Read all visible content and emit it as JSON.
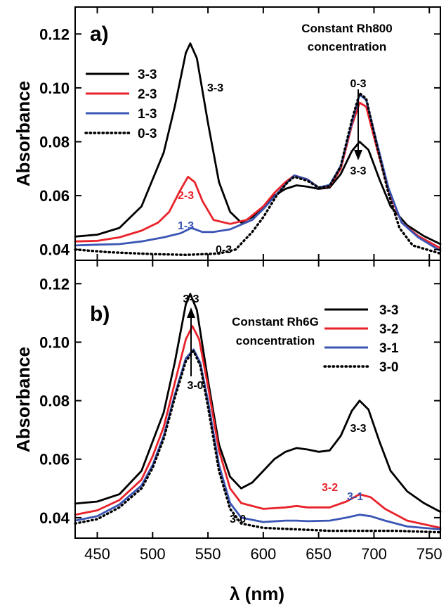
{
  "chart_data": [
    {
      "type": "line",
      "panel_label": "a)",
      "annotation": [
        "Constant Rh800",
        "concentration"
      ],
      "xlabel": "",
      "ylabel": "Absorbance",
      "xlim": [
        430,
        760
      ],
      "ylim": [
        0.036,
        0.13
      ],
      "xticks": [
        450,
        500,
        550,
        600,
        650,
        700,
        750
      ],
      "yticks": [
        0.04,
        0.06,
        0.08,
        0.1,
        0.12
      ],
      "ytick_labels": [
        "0.04",
        "0.06",
        "0.08",
        "0.10",
        "0.12"
      ],
      "grid": false,
      "legend_position": "top-left",
      "series": [
        {
          "name": "3-3",
          "color": "#000000",
          "style": "solid",
          "points": [
            [
              430,
              0.0448
            ],
            [
              450,
              0.0455
            ],
            [
              470,
              0.048
            ],
            [
              490,
              0.056
            ],
            [
              500,
              0.066
            ],
            [
              510,
              0.076
            ],
            [
              520,
              0.093
            ],
            [
              530,
              0.113
            ],
            [
              534,
              0.1165
            ],
            [
              540,
              0.111
            ],
            [
              550,
              0.087
            ],
            [
              560,
              0.065
            ],
            [
              570,
              0.054
            ],
            [
              580,
              0.05
            ],
            [
              590,
              0.052
            ],
            [
              600,
              0.056
            ],
            [
              610,
              0.06
            ],
            [
              620,
              0.0625
            ],
            [
              630,
              0.0638
            ],
            [
              640,
              0.0633
            ],
            [
              650,
              0.0625
            ],
            [
              660,
              0.063
            ],
            [
              670,
              0.068
            ],
            [
              680,
              0.0765
            ],
            [
              687,
              0.08
            ],
            [
              695,
              0.077
            ],
            [
              705,
              0.066
            ],
            [
              715,
              0.056
            ],
            [
              730,
              0.049
            ],
            [
              745,
              0.045
            ],
            [
              760,
              0.042
            ]
          ]
        },
        {
          "name": "2-3",
          "color": "#e8222a",
          "style": "solid",
          "points": [
            [
              430,
              0.043
            ],
            [
              450,
              0.0432
            ],
            [
              470,
              0.0445
            ],
            [
              490,
              0.047
            ],
            [
              505,
              0.05
            ],
            [
              515,
              0.054
            ],
            [
              525,
              0.062
            ],
            [
              532,
              0.067
            ],
            [
              538,
              0.065
            ],
            [
              545,
              0.058
            ],
            [
              555,
              0.051
            ],
            [
              570,
              0.0495
            ],
            [
              585,
              0.051
            ],
            [
              600,
              0.056
            ],
            [
              610,
              0.061
            ],
            [
              620,
              0.065
            ],
            [
              628,
              0.0675
            ],
            [
              640,
              0.066
            ],
            [
              650,
              0.063
            ],
            [
              660,
              0.0635
            ],
            [
              670,
              0.07
            ],
            [
              680,
              0.086
            ],
            [
              687,
              0.0945
            ],
            [
              693,
              0.093
            ],
            [
              703,
              0.077
            ],
            [
              713,
              0.062
            ],
            [
              725,
              0.05
            ],
            [
              740,
              0.045
            ],
            [
              760,
              0.0405
            ]
          ]
        },
        {
          "name": "1-3",
          "color": "#3a55b4",
          "style": "solid",
          "points": [
            [
              430,
              0.0415
            ],
            [
              450,
              0.0418
            ],
            [
              470,
              0.042
            ],
            [
              490,
              0.043
            ],
            [
              510,
              0.0445
            ],
            [
              525,
              0.046
            ],
            [
              535,
              0.048
            ],
            [
              545,
              0.0465
            ],
            [
              555,
              0.0465
            ],
            [
              570,
              0.0475
            ],
            [
              590,
              0.051
            ],
            [
              600,
              0.055
            ],
            [
              612,
              0.0605
            ],
            [
              622,
              0.065
            ],
            [
              628,
              0.0675
            ],
            [
              640,
              0.066
            ],
            [
              650,
              0.063
            ],
            [
              660,
              0.064
            ],
            [
              670,
              0.071
            ],
            [
              680,
              0.087
            ],
            [
              687,
              0.0975
            ],
            [
              693,
              0.0955
            ],
            [
              703,
              0.079
            ],
            [
              713,
              0.063
            ],
            [
              725,
              0.05
            ],
            [
              740,
              0.0445
            ],
            [
              760,
              0.0395
            ]
          ]
        },
        {
          "name": "0-3",
          "color": "#000000",
          "style": "dotted",
          "points": [
            [
              430,
              0.04
            ],
            [
              460,
              0.039
            ],
            [
              500,
              0.0383
            ],
            [
              530,
              0.038
            ],
            [
              560,
              0.0385
            ],
            [
              575,
              0.04
            ],
            [
              590,
              0.0465
            ],
            [
              600,
              0.052
            ],
            [
              612,
              0.06
            ],
            [
              622,
              0.065
            ],
            [
              628,
              0.067
            ],
            [
              640,
              0.0655
            ],
            [
              650,
              0.063
            ],
            [
              660,
              0.0635
            ],
            [
              670,
              0.071
            ],
            [
              680,
              0.088
            ],
            [
              687,
              0.098
            ],
            [
              693,
              0.096
            ],
            [
              703,
              0.078
            ],
            [
              713,
              0.061
            ],
            [
              723,
              0.048
            ],
            [
              735,
              0.0415
            ],
            [
              760,
              0.0385
            ]
          ]
        }
      ],
      "legend": [
        "3-3",
        "2-3",
        "1-3",
        "0-3"
      ],
      "curve_labels": [
        "3-3",
        "2-3",
        "1-3",
        "0-3",
        "0-3",
        "3-3"
      ]
    },
    {
      "type": "line",
      "panel_label": "b)",
      "annotation": [
        "Constant Rh6G",
        "concentration"
      ],
      "xlabel": "λ (nm)",
      "ylabel": "Absorbance",
      "xlim": [
        430,
        760
      ],
      "ylim": [
        0.033,
        0.128
      ],
      "xticks": [
        450,
        500,
        550,
        600,
        650,
        700,
        750
      ],
      "xtick_labels": [
        "450",
        "500",
        "550",
        "600",
        "650",
        "700",
        "750"
      ],
      "yticks": [
        0.04,
        0.06,
        0.08,
        0.1,
        0.12
      ],
      "ytick_labels": [
        "0.04",
        "0.06",
        "0.08",
        "0.10",
        "0.12"
      ],
      "grid": false,
      "legend_position": "top-right",
      "series": [
        {
          "name": "3-3",
          "color": "#000000",
          "style": "solid",
          "points": [
            [
              430,
              0.0448
            ],
            [
              450,
              0.0455
            ],
            [
              470,
              0.048
            ],
            [
              490,
              0.056
            ],
            [
              500,
              0.066
            ],
            [
              510,
              0.076
            ],
            [
              520,
              0.093
            ],
            [
              530,
              0.113
            ],
            [
              534,
              0.1165
            ],
            [
              540,
              0.111
            ],
            [
              550,
              0.087
            ],
            [
              560,
              0.065
            ],
            [
              570,
              0.054
            ],
            [
              580,
              0.05
            ],
            [
              590,
              0.052
            ],
            [
              600,
              0.056
            ],
            [
              610,
              0.06
            ],
            [
              620,
              0.0625
            ],
            [
              630,
              0.0638
            ],
            [
              640,
              0.0633
            ],
            [
              650,
              0.0625
            ],
            [
              660,
              0.063
            ],
            [
              670,
              0.068
            ],
            [
              680,
              0.0765
            ],
            [
              687,
              0.08
            ],
            [
              695,
              0.077
            ],
            [
              705,
              0.066
            ],
            [
              715,
              0.056
            ],
            [
              730,
              0.049
            ],
            [
              745,
              0.045
            ],
            [
              760,
              0.042
            ]
          ]
        },
        {
          "name": "3-2",
          "color": "#e8222a",
          "style": "solid",
          "points": [
            [
              430,
              0.041
            ],
            [
              450,
              0.0425
            ],
            [
              470,
              0.046
            ],
            [
              490,
              0.053
            ],
            [
              500,
              0.061
            ],
            [
              510,
              0.071
            ],
            [
              520,
              0.086
            ],
            [
              530,
              0.101
            ],
            [
              536,
              0.1055
            ],
            [
              542,
              0.101
            ],
            [
              550,
              0.085
            ],
            [
              560,
              0.063
            ],
            [
              570,
              0.05
            ],
            [
              580,
              0.045
            ],
            [
              600,
              0.043
            ],
            [
              620,
              0.0435
            ],
            [
              630,
              0.044
            ],
            [
              640,
              0.0435
            ],
            [
              660,
              0.0435
            ],
            [
              675,
              0.0455
            ],
            [
              687,
              0.048
            ],
            [
              697,
              0.047
            ],
            [
              710,
              0.043
            ],
            [
              730,
              0.039
            ],
            [
              760,
              0.0365
            ]
          ]
        },
        {
          "name": "3-1",
          "color": "#3a55b4",
          "style": "solid",
          "points": [
            [
              430,
              0.039
            ],
            [
              450,
              0.0405
            ],
            [
              470,
              0.0445
            ],
            [
              490,
              0.051
            ],
            [
              500,
              0.058
            ],
            [
              510,
              0.068
            ],
            [
              520,
              0.082
            ],
            [
              530,
              0.0945
            ],
            [
              537,
              0.0975
            ],
            [
              543,
              0.093
            ],
            [
              550,
              0.08
            ],
            [
              560,
              0.058
            ],
            [
              570,
              0.045
            ],
            [
              580,
              0.04
            ],
            [
              600,
              0.0385
            ],
            [
              620,
              0.039
            ],
            [
              630,
              0.039
            ],
            [
              640,
              0.0388
            ],
            [
              660,
              0.039
            ],
            [
              675,
              0.04
            ],
            [
              687,
              0.041
            ],
            [
              697,
              0.0405
            ],
            [
              710,
              0.039
            ],
            [
              730,
              0.037
            ],
            [
              760,
              0.036
            ]
          ]
        },
        {
          "name": "3-0",
          "color": "#000000",
          "style": "dotted",
          "points": [
            [
              430,
              0.038
            ],
            [
              450,
              0.0395
            ],
            [
              470,
              0.0435
            ],
            [
              490,
              0.05
            ],
            [
              500,
              0.057
            ],
            [
              510,
              0.067
            ],
            [
              520,
              0.081
            ],
            [
              530,
              0.0935
            ],
            [
              537,
              0.097
            ],
            [
              543,
              0.092
            ],
            [
              550,
              0.078
            ],
            [
              560,
              0.056
            ],
            [
              570,
              0.043
            ],
            [
              580,
              0.038
            ],
            [
              600,
              0.0365
            ],
            [
              630,
              0.036
            ],
            [
              660,
              0.0355
            ],
            [
              690,
              0.0355
            ],
            [
              720,
              0.0355
            ],
            [
              760,
              0.035
            ]
          ]
        }
      ],
      "legend": [
        "3-3",
        "3-2",
        "3-1",
        "3-0"
      ],
      "curve_labels": [
        "3-3",
        "3-0",
        "3-3",
        "3-2",
        "3-1",
        "3-0"
      ]
    }
  ]
}
